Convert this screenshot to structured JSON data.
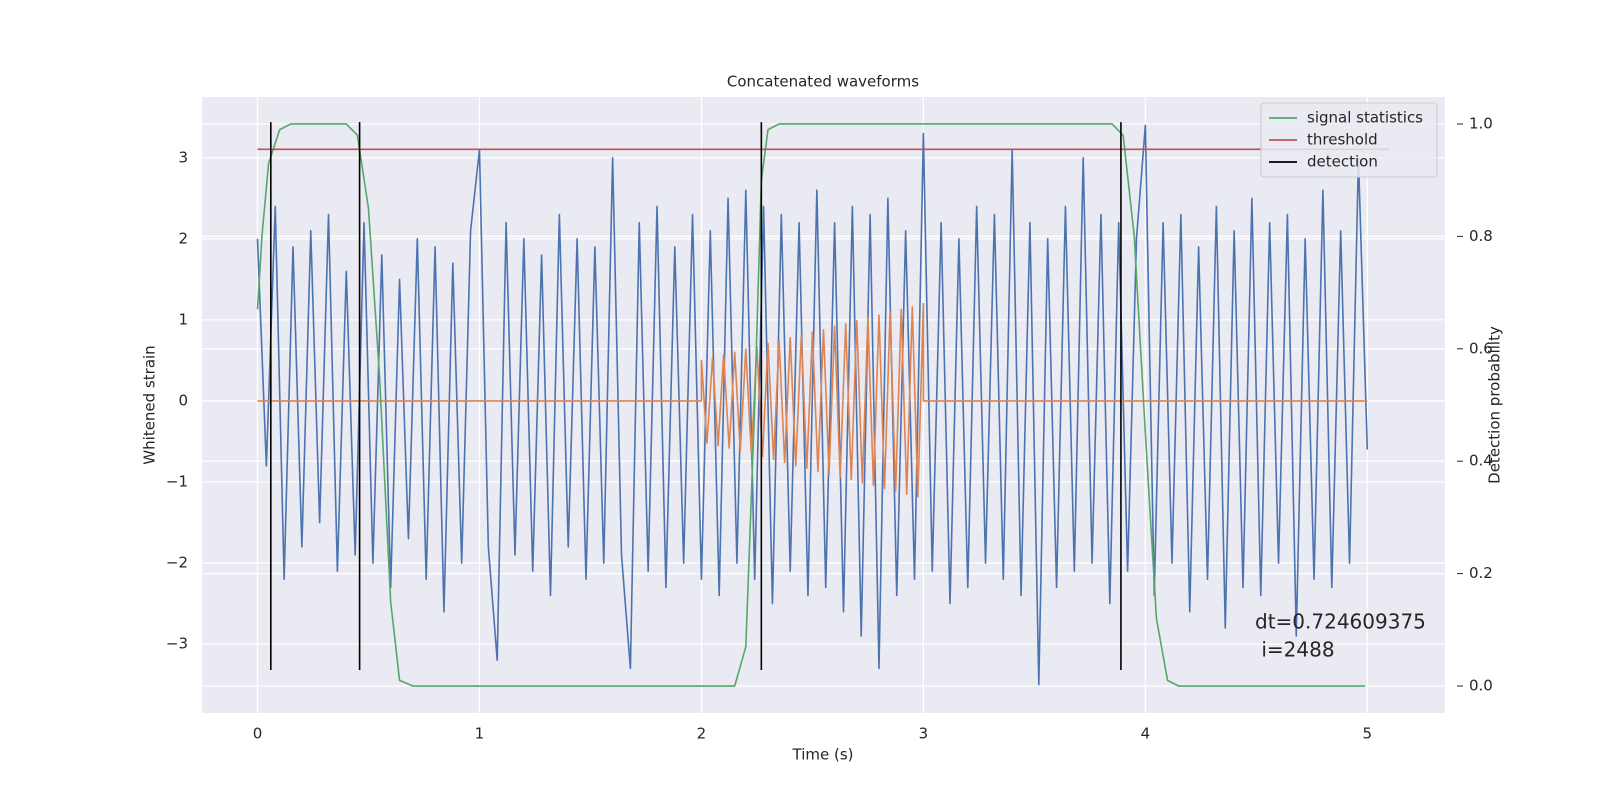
{
  "chart_data": {
    "type": "line",
    "title": "Concatenated waveforms",
    "xlabel": "Time (s)",
    "ylabel": "Whitened strain",
    "y2label": "Detection probability",
    "xlim": [
      -0.25,
      5.35
    ],
    "xticks": [
      0,
      1,
      2,
      3,
      4,
      5
    ],
    "ylim": [
      -3.85,
      3.75
    ],
    "yticks": [
      {
        "value": -3,
        "label": "−3"
      },
      {
        "value": -2,
        "label": "−2"
      },
      {
        "value": -1,
        "label": "−1"
      },
      0,
      1,
      2,
      3
    ],
    "y2lim": [
      -0.048,
      1.048
    ],
    "y2ticks": [
      {
        "value": 0,
        "label": "0.0"
      },
      0.2,
      0.4,
      0.6,
      0.8,
      {
        "value": 1,
        "label": "1.0"
      }
    ],
    "grid": true,
    "legend": "upper right",
    "annotation": [
      "dt=0.724609375",
      " i=2488"
    ],
    "series": [
      {
        "color": "#4c72b0",
        "x": [
          0,
          0.04,
          0.08,
          0.12,
          0.16,
          0.2,
          0.24,
          0.28,
          0.32,
          0.36,
          0.4,
          0.44,
          0.48,
          0.52,
          0.56,
          0.6,
          0.64,
          0.68,
          0.72,
          0.76,
          0.8,
          0.84,
          0.88,
          0.92,
          0.96,
          1,
          1.04,
          1.08,
          1.12,
          1.16,
          1.2,
          1.24,
          1.28,
          1.32,
          1.36,
          1.4,
          1.44,
          1.48,
          1.52,
          1.56,
          1.6,
          1.64,
          1.68,
          1.72,
          1.76,
          1.8,
          1.84,
          1.88,
          1.92,
          1.96,
          2,
          2.04,
          2.08,
          2.12,
          2.16,
          2.2,
          2.24,
          2.28,
          2.32,
          2.36,
          2.4,
          2.44,
          2.48,
          2.52,
          2.56,
          2.6,
          2.64,
          2.68,
          2.72,
          2.76,
          2.8,
          2.84,
          2.88,
          2.92,
          2.96,
          3,
          3.04,
          3.08,
          3.12,
          3.16,
          3.2,
          3.24,
          3.28,
          3.32,
          3.36,
          3.4,
          3.44,
          3.48,
          3.52,
          3.56,
          3.6,
          3.64,
          3.68,
          3.72,
          3.76,
          3.8,
          3.84,
          3.88,
          3.92,
          3.96,
          4,
          4.04,
          4.08,
          4.12,
          4.16,
          4.2,
          4.24,
          4.28,
          4.32,
          4.36,
          4.4,
          4.44,
          4.48,
          4.52,
          4.56,
          4.6,
          4.64,
          4.68,
          4.72,
          4.76,
          4.8,
          4.84,
          4.88,
          4.92,
          4.96,
          5
        ],
        "values": [
          2.0,
          -0.8,
          2.4,
          -2.2,
          1.9,
          -1.8,
          2.1,
          -1.5,
          2.3,
          -2.1,
          1.6,
          -1.9,
          2.2,
          -2.0,
          1.8,
          -2.3,
          1.5,
          -1.7,
          2.0,
          -2.2,
          1.9,
          -2.6,
          1.7,
          -2.0,
          2.1,
          3.1,
          -1.8,
          -3.2,
          2.2,
          -1.9,
          2.0,
          -2.1,
          1.8,
          -2.4,
          2.3,
          -1.8,
          2.0,
          -2.2,
          1.9,
          -2.0,
          3.0,
          -1.9,
          -3.3,
          2.2,
          -2.1,
          2.4,
          -2.3,
          1.9,
          -2.0,
          2.3,
          -2.2,
          2.1,
          -2.4,
          2.5,
          -2.0,
          2.6,
          -2.2,
          2.4,
          -2.5,
          2.3,
          -2.1,
          2.2,
          -2.4,
          2.6,
          -2.3,
          2.2,
          -2.6,
          2.4,
          -2.9,
          2.3,
          -3.3,
          2.5,
          -2.4,
          2.1,
          -2.2,
          3.3,
          -2.1,
          2.2,
          -2.5,
          2.0,
          -2.3,
          2.4,
          -2.0,
          2.3,
          -2.2,
          3.1,
          -2.4,
          2.2,
          -3.5,
          2.0,
          -2.3,
          2.4,
          -2.1,
          3.0,
          -2.0,
          2.3,
          -2.5,
          2.2,
          -2.1,
          2.0,
          3.4,
          -2.4,
          2.2,
          -2.0,
          2.3,
          -2.6,
          1.9,
          -2.2,
          2.4,
          -2.8,
          2.1,
          -2.3,
          2.5,
          -2.4,
          2.2,
          -2.0,
          2.3,
          -2.9,
          2.0,
          -2.2,
          2.6,
          -2.3,
          2.1,
          -2.0,
          3.0,
          -0.6
        ]
      },
      {
        "color": "#dd8452",
        "x": [
          0,
          2,
          2,
          2.025,
          2.05,
          2.075,
          2.1,
          2.125,
          2.15,
          2.175,
          2.2,
          2.225,
          2.25,
          2.275,
          2.3,
          2.325,
          2.35,
          2.375,
          2.4,
          2.425,
          2.45,
          2.475,
          2.5,
          2.525,
          2.55,
          2.575,
          2.6,
          2.625,
          2.65,
          2.675,
          2.7,
          2.725,
          2.75,
          2.775,
          2.8,
          2.825,
          2.85,
          2.875,
          2.9,
          2.925,
          2.95,
          2.975,
          3,
          3,
          5
        ],
        "values": [
          0,
          0,
          0.5,
          -0.52,
          0.53,
          -0.55,
          0.57,
          -0.58,
          0.6,
          -0.62,
          0.64,
          -0.65,
          0.67,
          -0.69,
          0.71,
          -0.72,
          0.74,
          -0.76,
          0.78,
          -0.8,
          0.81,
          -0.83,
          0.85,
          -0.87,
          0.88,
          -0.9,
          0.92,
          -0.94,
          0.95,
          -0.97,
          0.99,
          -1.01,
          1.02,
          -1.04,
          1.06,
          -1.08,
          1.09,
          -1.11,
          1.13,
          -1.15,
          1.16,
          -1.18,
          1.2,
          0,
          0
        ]
      },
      {
        "name": "signal statistics",
        "color": "#55a868",
        "axis": "y2",
        "x": [
          0,
          0.02,
          0.05,
          0.1,
          0.15,
          0.4,
          0.45,
          0.5,
          0.55,
          0.6,
          0.64,
          0.7,
          2.15,
          2.2,
          2.24,
          2.27,
          2.3,
          2.35,
          3.85,
          3.9,
          3.95,
          4,
          4.05,
          4.1,
          4.15,
          4.99
        ],
        "values": [
          0.67,
          0.8,
          0.93,
          0.99,
          1,
          1,
          0.98,
          0.85,
          0.55,
          0.15,
          0.01,
          0,
          0,
          0.07,
          0.5,
          0.9,
          0.99,
          1,
          1,
          0.98,
          0.8,
          0.45,
          0.12,
          0.01,
          0,
          0
        ]
      },
      {
        "name": "threshold",
        "color": "#c44e52",
        "axis": "y2",
        "x": [
          0,
          5.1
        ],
        "values": [
          0.955,
          0.955
        ]
      },
      {
        "name": "detection",
        "color": "#000000",
        "x": [
          0.06,
          0.06,
          0.06,
          0.46,
          0.46,
          0.46,
          2.27,
          2.27,
          2.27,
          3.89,
          3.89
        ],
        "values": [
          -3.32,
          3.44,
          null,
          -3.32,
          3.44,
          null,
          -3.32,
          3.44,
          null,
          -3.32,
          3.44
        ]
      }
    ]
  }
}
